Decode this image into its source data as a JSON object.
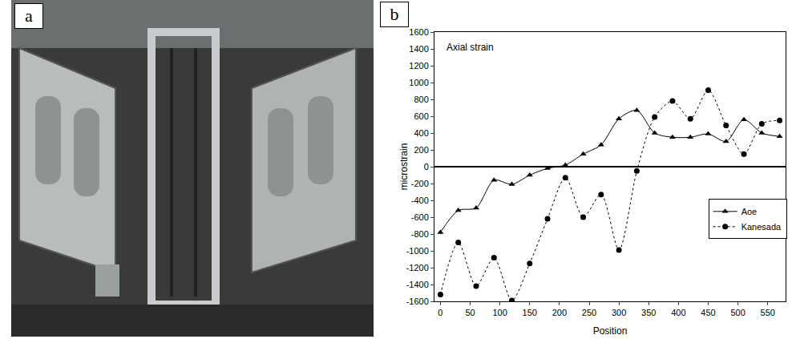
{
  "photo_panel": {
    "label": "a"
  },
  "chart_data": {
    "type": "line",
    "panel_label": "b",
    "annotation": "Axial strain",
    "x_label": "Position",
    "y_label": "microstrain",
    "xlim": [
      -10,
      580
    ],
    "xticks": [
      0,
      50,
      100,
      150,
      200,
      250,
      300,
      350,
      400,
      450,
      500,
      550
    ],
    "ylim": [
      -1600,
      1600
    ],
    "yticks": [
      -1600,
      -1400,
      -1200,
      -1000,
      -800,
      -600,
      -400,
      -200,
      0,
      200,
      400,
      600,
      800,
      1000,
      1200,
      1400,
      1600
    ],
    "grid": false,
    "legend": "right",
    "x": [
      0,
      30,
      60,
      90,
      120,
      150,
      180,
      210,
      240,
      270,
      300,
      330,
      360,
      390,
      420,
      450,
      480,
      510,
      540,
      570
    ],
    "series": [
      {
        "name": "Aoe",
        "color": "#000000",
        "marker": "triangle-up",
        "line_style": "solid",
        "values": [
          -780,
          -520,
          -490,
          -160,
          -210,
          -100,
          -20,
          20,
          150,
          260,
          570,
          670,
          400,
          350,
          350,
          390,
          300,
          560,
          400,
          360
        ]
      },
      {
        "name": "Kanesada",
        "color": "#000000",
        "marker": "circle",
        "line_style": "dot",
        "values": [
          -1520,
          -900,
          -1420,
          -1080,
          -1590,
          -1150,
          -620,
          -130,
          -600,
          -330,
          -990,
          -50,
          590,
          780,
          570,
          910,
          490,
          150,
          510,
          550
        ]
      }
    ]
  }
}
